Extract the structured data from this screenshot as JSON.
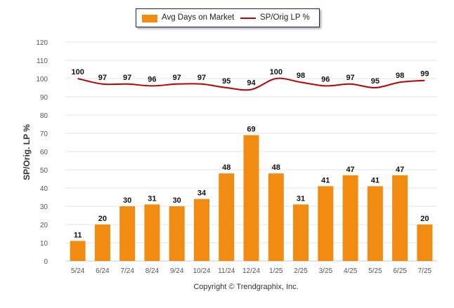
{
  "legend": {
    "bar_label": "Avg Days on Market",
    "line_label": "SP/Orig LP %"
  },
  "ylabel": "SP/Orig. LP %",
  "copyright": "Copyright © Trendgraphix, Inc.",
  "colors": {
    "bar": "#f28b12",
    "line": "#c00000",
    "grid": "#e6e6e6",
    "axis_text": "#555555",
    "label_text": "#111111"
  },
  "chart_data": {
    "type": "bar",
    "categories": [
      "5/24",
      "6/24",
      "7/24",
      "8/24",
      "9/24",
      "10/24",
      "11/24",
      "12/24",
      "1/25",
      "2/25",
      "3/25",
      "4/25",
      "5/25",
      "6/25",
      "7/25"
    ],
    "series": [
      {
        "name": "Avg Days on Market",
        "type": "bar",
        "values": [
          11,
          20,
          30,
          31,
          30,
          34,
          48,
          69,
          48,
          31,
          41,
          47,
          41,
          47,
          20
        ]
      },
      {
        "name": "SP/Orig LP %",
        "type": "line",
        "values": [
          100,
          97,
          97,
          96,
          97,
          97,
          95,
          94,
          100,
          98,
          96,
          97,
          95,
          98,
          99
        ]
      }
    ],
    "ylim": [
      0,
      120
    ],
    "yticks": [
      0,
      10,
      20,
      30,
      40,
      50,
      60,
      70,
      80,
      90,
      100,
      110,
      120
    ],
    "ylabel": "SP/Orig. LP %",
    "grid": true,
    "legend_position": "top"
  }
}
